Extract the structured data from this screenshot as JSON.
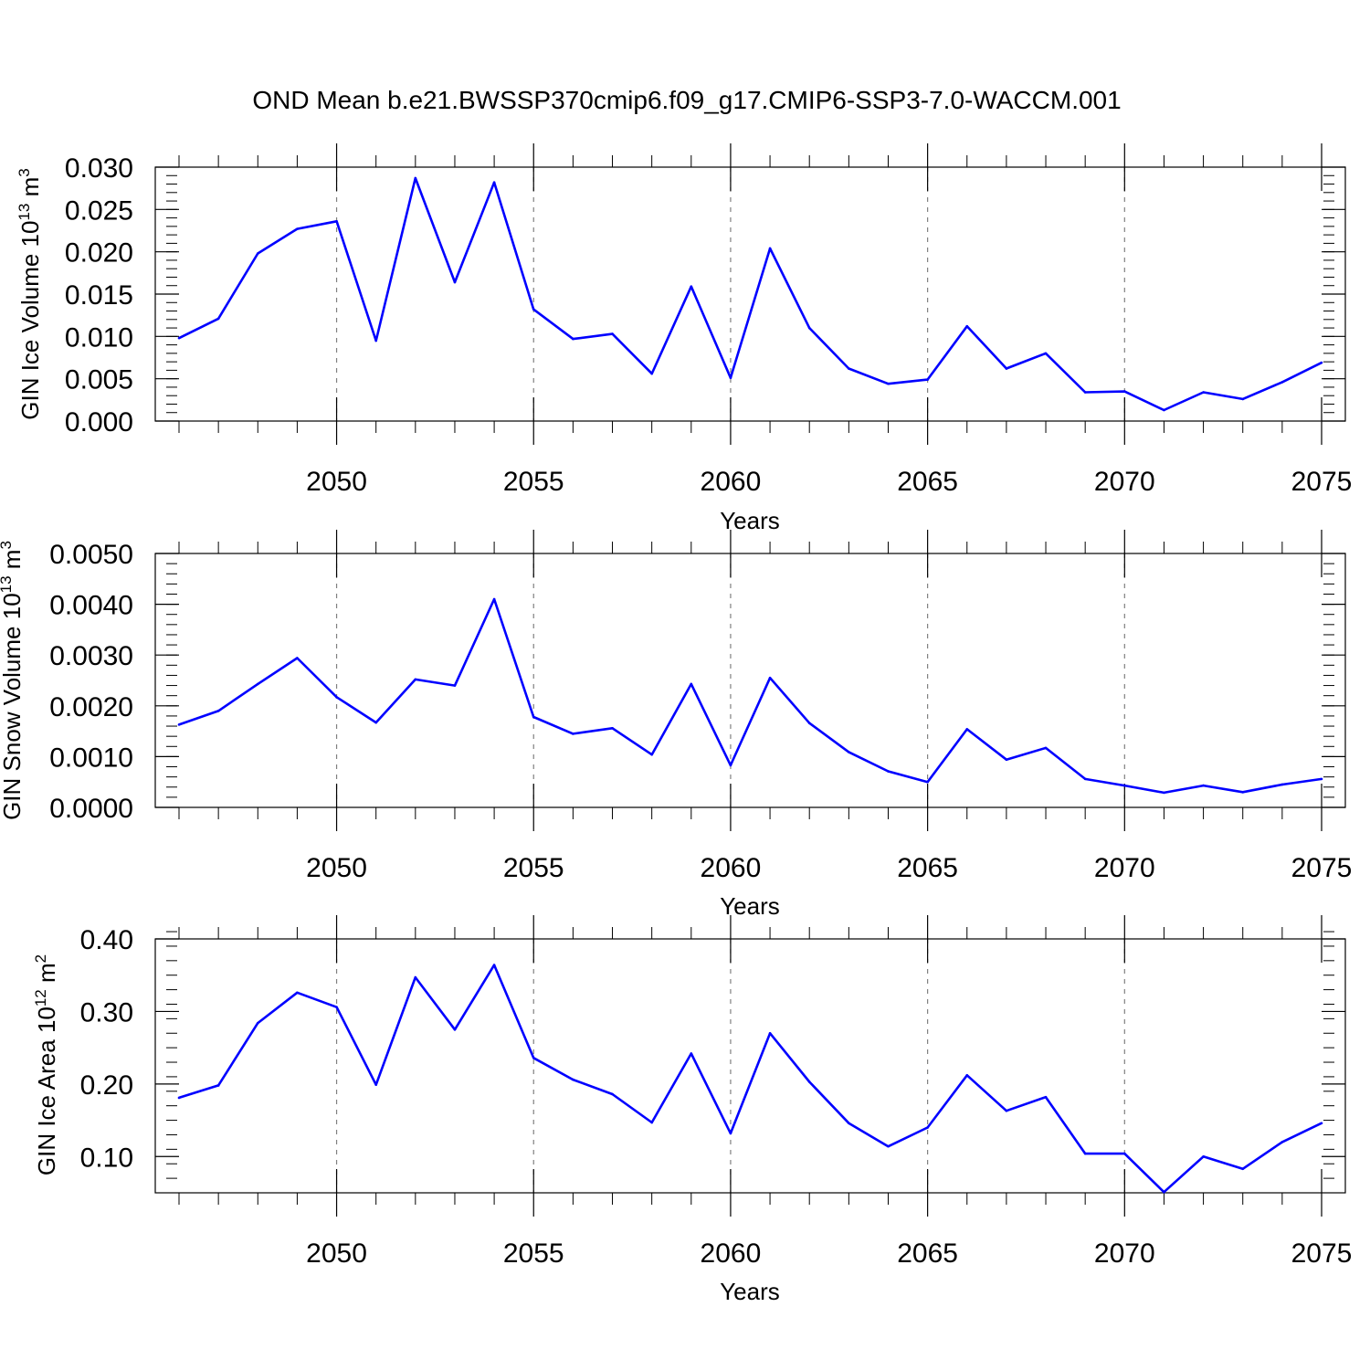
{
  "title": "OND Mean b.e21.BWSSP370cmip6.f09_g17.CMIP6-SSP3-7.0-WACCM.001",
  "line_color": "#0000ff",
  "chart_data": [
    {
      "type": "line",
      "ylabel": "GIN Ice Volume 10",
      "ylabel_exp": "13",
      "ylabel_unit": " m",
      "ylabel_unit_exp": "3",
      "xlabel": "Years",
      "xlim": [
        2046,
        2075
      ],
      "ylim": [
        0.0,
        0.03
      ],
      "grid": "vertical dashed at 2050, 2055, 2060, 2065, 2070",
      "x_ticks": [
        "2050",
        "2055",
        "2060",
        "2065",
        "2070",
        "2075"
      ],
      "y_ticks": [
        "0.000",
        "0.005",
        "0.010",
        "0.015",
        "0.020",
        "0.025",
        "0.030"
      ],
      "x": [
        2046,
        2047,
        2048,
        2049,
        2050,
        2051,
        2052,
        2053,
        2054,
        2055,
        2056,
        2057,
        2058,
        2059,
        2060,
        2061,
        2062,
        2063,
        2064,
        2065,
        2066,
        2067,
        2068,
        2069,
        2070,
        2071,
        2072,
        2073,
        2074,
        2075
      ],
      "values": [
        0.0098,
        0.0121,
        0.0198,
        0.0227,
        0.0236,
        0.0095,
        0.0287,
        0.0164,
        0.0282,
        0.0132,
        0.0097,
        0.0103,
        0.0056,
        0.0159,
        0.0051,
        0.0204,
        0.011,
        0.0062,
        0.0044,
        0.0049,
        0.0112,
        0.0062,
        0.008,
        0.0034,
        0.0035,
        0.0013,
        0.0034,
        0.0026,
        0.0046,
        0.0069
      ]
    },
    {
      "type": "line",
      "ylabel": "GIN Snow Volume 10",
      "ylabel_exp": "13",
      "ylabel_unit": " m",
      "ylabel_unit_exp": "3",
      "xlabel": "Years",
      "xlim": [
        2046,
        2075
      ],
      "ylim": [
        0.0,
        0.005
      ],
      "grid": "vertical dashed at 2050, 2055, 2060, 2065, 2070",
      "x_ticks": [
        "2050",
        "2055",
        "2060",
        "2065",
        "2070",
        "2075"
      ],
      "y_ticks": [
        "0.0000",
        "0.0010",
        "0.0020",
        "0.0030",
        "0.0040",
        "0.0050"
      ],
      "x": [
        2046,
        2047,
        2048,
        2049,
        2050,
        2051,
        2052,
        2053,
        2054,
        2055,
        2056,
        2057,
        2058,
        2059,
        2060,
        2061,
        2062,
        2063,
        2064,
        2065,
        2066,
        2067,
        2068,
        2069,
        2070,
        2071,
        2072,
        2073,
        2074,
        2075
      ],
      "values": [
        0.00163,
        0.0019,
        0.00243,
        0.00294,
        0.00217,
        0.00167,
        0.00252,
        0.0024,
        0.0041,
        0.00178,
        0.00145,
        0.00156,
        0.00104,
        0.00243,
        0.00083,
        0.00255,
        0.00166,
        0.00109,
        0.00071,
        0.0005,
        0.00154,
        0.00094,
        0.00117,
        0.00056,
        0.00043,
        0.00029,
        0.00043,
        0.0003,
        0.00045,
        0.00056
      ]
    },
    {
      "type": "line",
      "ylabel": "GIN Ice Area 10",
      "ylabel_exp": "12",
      "ylabel_unit": " m",
      "ylabel_unit_exp": "2",
      "xlabel": "Years",
      "xlim": [
        2046,
        2075
      ],
      "ylim": [
        0.05,
        0.4
      ],
      "grid": "vertical dashed at 2050, 2055, 2060, 2065, 2070",
      "x_ticks": [
        "2050",
        "2055",
        "2060",
        "2065",
        "2070",
        "2075"
      ],
      "y_ticks": [
        "0.10",
        "0.20",
        "0.30",
        "0.40"
      ],
      "x": [
        2046,
        2047,
        2048,
        2049,
        2050,
        2051,
        2052,
        2053,
        2054,
        2055,
        2056,
        2057,
        2058,
        2059,
        2060,
        2061,
        2062,
        2063,
        2064,
        2065,
        2066,
        2067,
        2068,
        2069,
        2070,
        2071,
        2072,
        2073,
        2074,
        2075
      ],
      "values": [
        0.181,
        0.198,
        0.284,
        0.326,
        0.306,
        0.199,
        0.347,
        0.275,
        0.364,
        0.236,
        0.206,
        0.186,
        0.147,
        0.242,
        0.132,
        0.27,
        0.203,
        0.146,
        0.114,
        0.14,
        0.212,
        0.163,
        0.182,
        0.104,
        0.104,
        0.051,
        0.1,
        0.083,
        0.12,
        0.146
      ]
    }
  ]
}
